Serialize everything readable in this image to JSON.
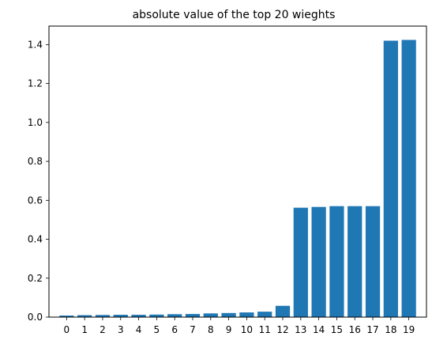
{
  "chart_data": {
    "type": "bar",
    "title": "absolute value of the top 20 wieghts",
    "xlabel": "",
    "ylabel": "",
    "categories": [
      "0",
      "1",
      "2",
      "3",
      "4",
      "5",
      "6",
      "7",
      "8",
      "9",
      "10",
      "11",
      "12",
      "13",
      "14",
      "15",
      "16",
      "17",
      "18",
      "19"
    ],
    "values": [
      0.008,
      0.01,
      0.011,
      0.012,
      0.012,
      0.013,
      0.015,
      0.016,
      0.019,
      0.021,
      0.024,
      0.028,
      0.058,
      0.562,
      0.566,
      0.57,
      0.57,
      0.57,
      1.42,
      1.424
    ],
    "ylim": [
      0,
      1.495
    ],
    "yticks": [
      "0.0",
      "0.2",
      "0.4",
      "0.6",
      "0.8",
      "1.0",
      "1.2",
      "1.4"
    ],
    "bar_color": "#1f77b4",
    "grid": false
  }
}
